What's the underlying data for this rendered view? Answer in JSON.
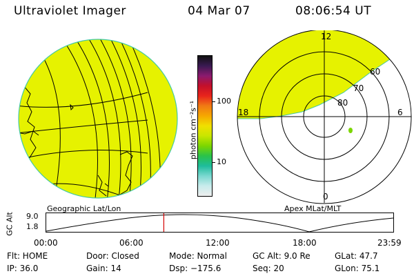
{
  "header": {
    "instrument": "Ultraviolet Imager",
    "date": "04 Mar 07",
    "time": "08:06:54 UT"
  },
  "colors": {
    "auroral_fill": "#e6f200",
    "limb_edge": "#43c9a4",
    "grid_line": "#000000",
    "time_marker": "#d40000"
  },
  "left_panel": {
    "label": "Geographic Lat/Lon"
  },
  "colorbar": {
    "unit_label": "photon cm⁻²s⁻¹",
    "ticks": [
      "100",
      "10"
    ],
    "scale": "log",
    "colors_top_to_bottom": [
      "#111111",
      "#3a1a52",
      "#8b1a6f",
      "#c4102a",
      "#e8241c",
      "#f07a14",
      "#f6a800",
      "#f0e000",
      "#c8e600",
      "#7cd600",
      "#2ac24a",
      "#1ebc9c",
      "#7ad8d0",
      "#c8ecec",
      "#eeeeee"
    ]
  },
  "right_panel": {
    "label": "Apex MLat/MLT",
    "mlt_labels": {
      "top": "12",
      "left": "18",
      "right": "6",
      "bottom": "0"
    },
    "mlat_labels": [
      "60",
      "70",
      "80"
    ]
  },
  "timeline": {
    "axis_label": "GC Alt",
    "y_ticks": [
      "9.0",
      "1.8"
    ],
    "x_ticks": [
      "00:00",
      "06:00",
      "12:00",
      "18:00",
      "23:59"
    ],
    "current_time_hours": 8.115
  },
  "footer": {
    "rows": [
      [
        "Flt: HOME",
        "Door: Closed",
        "Mode: Normal",
        "GC Alt: 9.0 Re",
        "GLat:  47.7"
      ],
      [
        "IP: 36.0",
        "Gain: 14",
        "Dsp: −175.6",
        "Seq: 20",
        "GLon:  75.1"
      ]
    ]
  }
}
